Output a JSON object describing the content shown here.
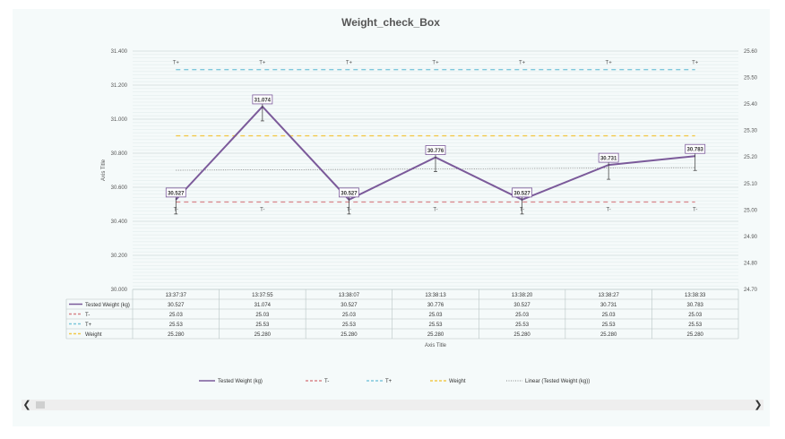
{
  "chart_data": {
    "type": "line",
    "title": "Weight_check_Box",
    "xlabel": "Axis Title",
    "ylabel": "Axis Title",
    "categories": [
      "13:37:37",
      "13:37:55",
      "13:38:07",
      "13:38:13",
      "13:38:20",
      "13:38:27",
      "13:38:33"
    ],
    "ylim": [
      30.0,
      31.4
    ],
    "y2lim": [
      24.7,
      25.6
    ],
    "y_ticks": [
      "30.000",
      "30.200",
      "30.400",
      "30.600",
      "30.800",
      "31.000",
      "31.200",
      "31.400"
    ],
    "y2_ticks": [
      "24.70",
      "24.80",
      "24.90",
      "25.00",
      "25.10",
      "25.20",
      "25.30",
      "25.40",
      "25.50",
      "25.60"
    ],
    "grid": true,
    "legend_position": "bottom",
    "series": [
      {
        "name": "Tested Weight (kg)",
        "color": "#7b5a9a",
        "style": "solid",
        "axis": "primary",
        "values": [
          30.527,
          31.074,
          30.527,
          30.776,
          30.527,
          30.731,
          30.783
        ],
        "labels": [
          "30.527",
          "31.074",
          "30.527",
          "30.776",
          "30.527",
          "30.731",
          "30.783"
        ],
        "table_values": [
          "30.527",
          "31.074",
          "30.527",
          "30.776",
          "30.527",
          "30.731",
          "30.783"
        ]
      },
      {
        "name": "T-",
        "color": "#d9858a",
        "style": "dashed",
        "axis": "secondary",
        "values": [
          25.03,
          25.03,
          25.03,
          25.03,
          25.03,
          25.03,
          25.03
        ],
        "point_label": "T-",
        "table_values": [
          "25.03",
          "25.03",
          "25.03",
          "25.03",
          "25.03",
          "25.03",
          "25.03"
        ]
      },
      {
        "name": "T+",
        "color": "#7ec8dc",
        "style": "dashed",
        "axis": "secondary",
        "values": [
          25.53,
          25.53,
          25.53,
          25.53,
          25.53,
          25.53,
          25.53
        ],
        "point_label": "T+",
        "table_values": [
          "25.53",
          "25.53",
          "25.53",
          "25.53",
          "25.53",
          "25.53",
          "25.53"
        ]
      },
      {
        "name": "Weight",
        "color": "#f2c94c",
        "style": "dashed",
        "axis": "secondary",
        "values": [
          25.28,
          25.28,
          25.28,
          25.28,
          25.28,
          25.28,
          25.28
        ],
        "table_values": [
          "25.280",
          "25.280",
          "25.280",
          "25.280",
          "25.280",
          "25.280",
          "25.280"
        ]
      }
    ],
    "trendline": {
      "name": "Linear (Tested Weight (kg))",
      "color": "#666666",
      "start": 30.7,
      "end": 30.715
    }
  }
}
